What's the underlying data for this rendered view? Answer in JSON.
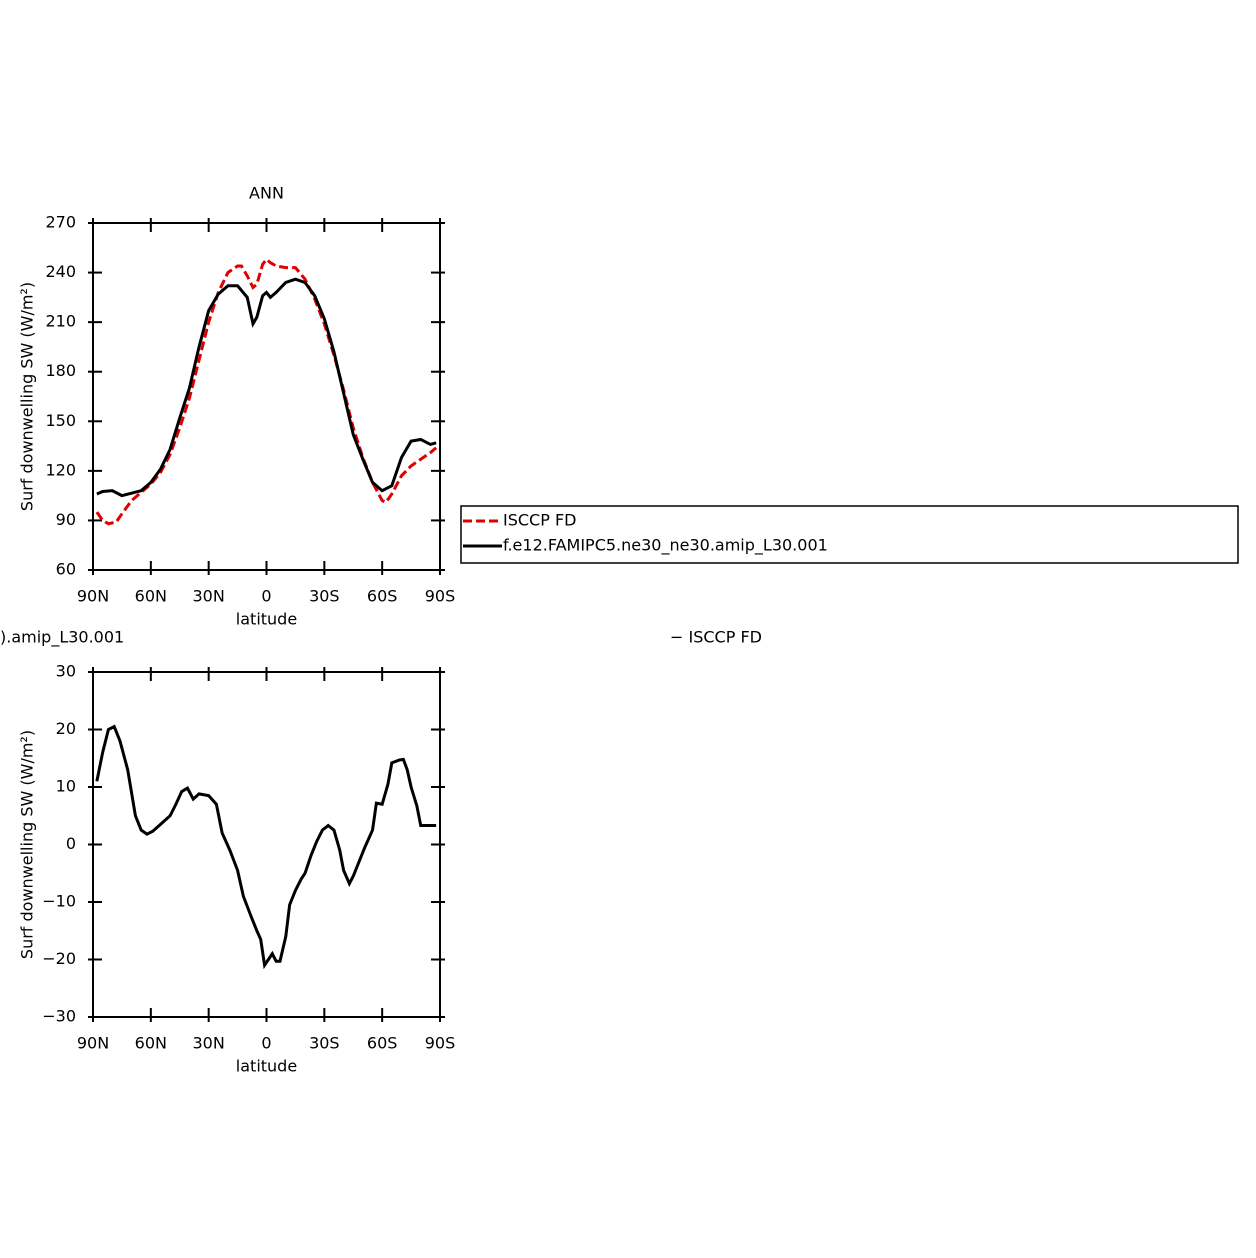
{
  "chart_data": [
    {
      "type": "line",
      "title": "ANN",
      "ylabel": "Surf downwelling SW (W/m²)",
      "xlabel": "latitude",
      "xlim": [
        90,
        -90
      ],
      "ylim": [
        60,
        270
      ],
      "xticks": [
        {
          "value": 90,
          "label": "90N"
        },
        {
          "value": 60,
          "label": "60N"
        },
        {
          "value": 30,
          "label": "30N"
        },
        0,
        {
          "value": -30,
          "label": "30S"
        },
        {
          "value": -60,
          "label": "60S"
        },
        {
          "value": -90,
          "label": "90S"
        }
      ],
      "yticks": [
        60,
        90,
        120,
        150,
        180,
        210,
        240,
        270
      ],
      "legend": "right",
      "series": [
        {
          "name": "ISCCP FD",
          "color": "#e00000",
          "dash": "dashed",
          "x": [
            88,
            85,
            82,
            78,
            75,
            70,
            65,
            60,
            55,
            50,
            45,
            40,
            35,
            30,
            25,
            20,
            15,
            13,
            10,
            7,
            5,
            2,
            0,
            -2,
            -5,
            -10,
            -15,
            -20,
            -25,
            -30,
            -35,
            -40,
            -45,
            -50,
            -55,
            -60,
            -62,
            -65,
            -70,
            -75,
            -80,
            -85,
            -88
          ],
          "values": [
            95,
            90,
            88,
            89,
            94,
            102,
            107,
            112,
            119,
            130,
            146,
            164,
            187,
            210,
            228,
            240,
            244,
            244,
            238,
            231,
            233,
            245,
            248,
            246,
            244,
            243,
            243,
            236,
            224,
            209,
            190,
            169,
            146,
            128,
            113,
            102,
            101,
            106,
            117,
            123,
            127,
            131,
            134
          ]
        },
        {
          "name": "f.e12.FAMIPC5.ne30_ne30.amip_L30.001",
          "color": "#000000",
          "dash": "solid",
          "x": [
            88,
            85,
            80,
            75,
            70,
            65,
            60,
            55,
            50,
            45,
            40,
            35,
            30,
            25,
            20,
            15,
            10,
            7,
            5,
            2,
            0,
            -2,
            -5,
            -10,
            -15,
            -20,
            -25,
            -30,
            -35,
            -40,
            -45,
            -50,
            -55,
            -60,
            -65,
            -70,
            -75,
            -80,
            -85,
            -88
          ],
          "values": [
            106,
            107.5,
            108,
            105,
            106.5,
            108,
            113,
            121,
            133,
            152,
            170,
            195,
            217,
            227,
            232,
            232,
            225,
            209,
            213,
            226,
            228,
            225,
            228,
            234,
            236,
            234,
            226,
            212,
            192,
            167,
            142,
            127,
            113,
            108,
            111,
            128,
            138,
            139,
            136,
            137
          ]
        }
      ]
    },
    {
      "type": "line",
      "title": [
        ").amip_L30.001",
        "− ISCCP FD"
      ],
      "ylabel": "Surf downwelling SW (W/m²)",
      "xlabel": "latitude",
      "xlim": [
        90,
        -90
      ],
      "ylim": [
        -30,
        30
      ],
      "xticks": [
        {
          "value": 90,
          "label": "90N"
        },
        {
          "value": 60,
          "label": "60N"
        },
        {
          "value": 30,
          "label": "30N"
        },
        0,
        {
          "value": -30,
          "label": "30S"
        },
        {
          "value": -60,
          "label": "60S"
        },
        {
          "value": -90,
          "label": "90S"
        }
      ],
      "yticks": [
        {
          "value": -30,
          "label": "−30"
        },
        {
          "value": -20,
          "label": "−20"
        },
        {
          "value": -10,
          "label": "−10"
        },
        0,
        10,
        20,
        30
      ],
      "series": [
        {
          "color": "#000000",
          "dash": "solid",
          "x": [
            88,
            85,
            82,
            79,
            76,
            72,
            68,
            65,
            62,
            59,
            55,
            50,
            47,
            44,
            41,
            38,
            35,
            30,
            26,
            23,
            19,
            15,
            12,
            8,
            5,
            3,
            1,
            -3,
            -5,
            -7,
            -10,
            -12,
            -15,
            -18,
            -20,
            -23,
            -26,
            -29,
            -32,
            -35,
            -38,
            -40,
            -43,
            -45,
            -48,
            -51,
            -55,
            -57,
            -60,
            -63,
            -65,
            -69,
            -71,
            -73,
            -75,
            -78,
            -80,
            -88
          ],
          "values": [
            11,
            16,
            20,
            20.5,
            18,
            13,
            5,
            2.5,
            1.8,
            2.3,
            3.5,
            5,
            7,
            9.2,
            9.8,
            7.9,
            8.8,
            8.5,
            7,
            2,
            -1,
            -4.5,
            -9,
            -12.5,
            -15,
            -16.5,
            -21,
            -19,
            -20.3,
            -20.3,
            -16,
            -10.5,
            -8,
            -6,
            -5,
            -2,
            0.5,
            2.5,
            3.3,
            2.5,
            -1,
            -4.5,
            -6.8,
            -5.5,
            -3,
            -0.5,
            2.5,
            7.2,
            7,
            10.5,
            14.2,
            14.7,
            14.8,
            13,
            10,
            6.7,
            3.3,
            3.3
          ]
        }
      ]
    }
  ]
}
